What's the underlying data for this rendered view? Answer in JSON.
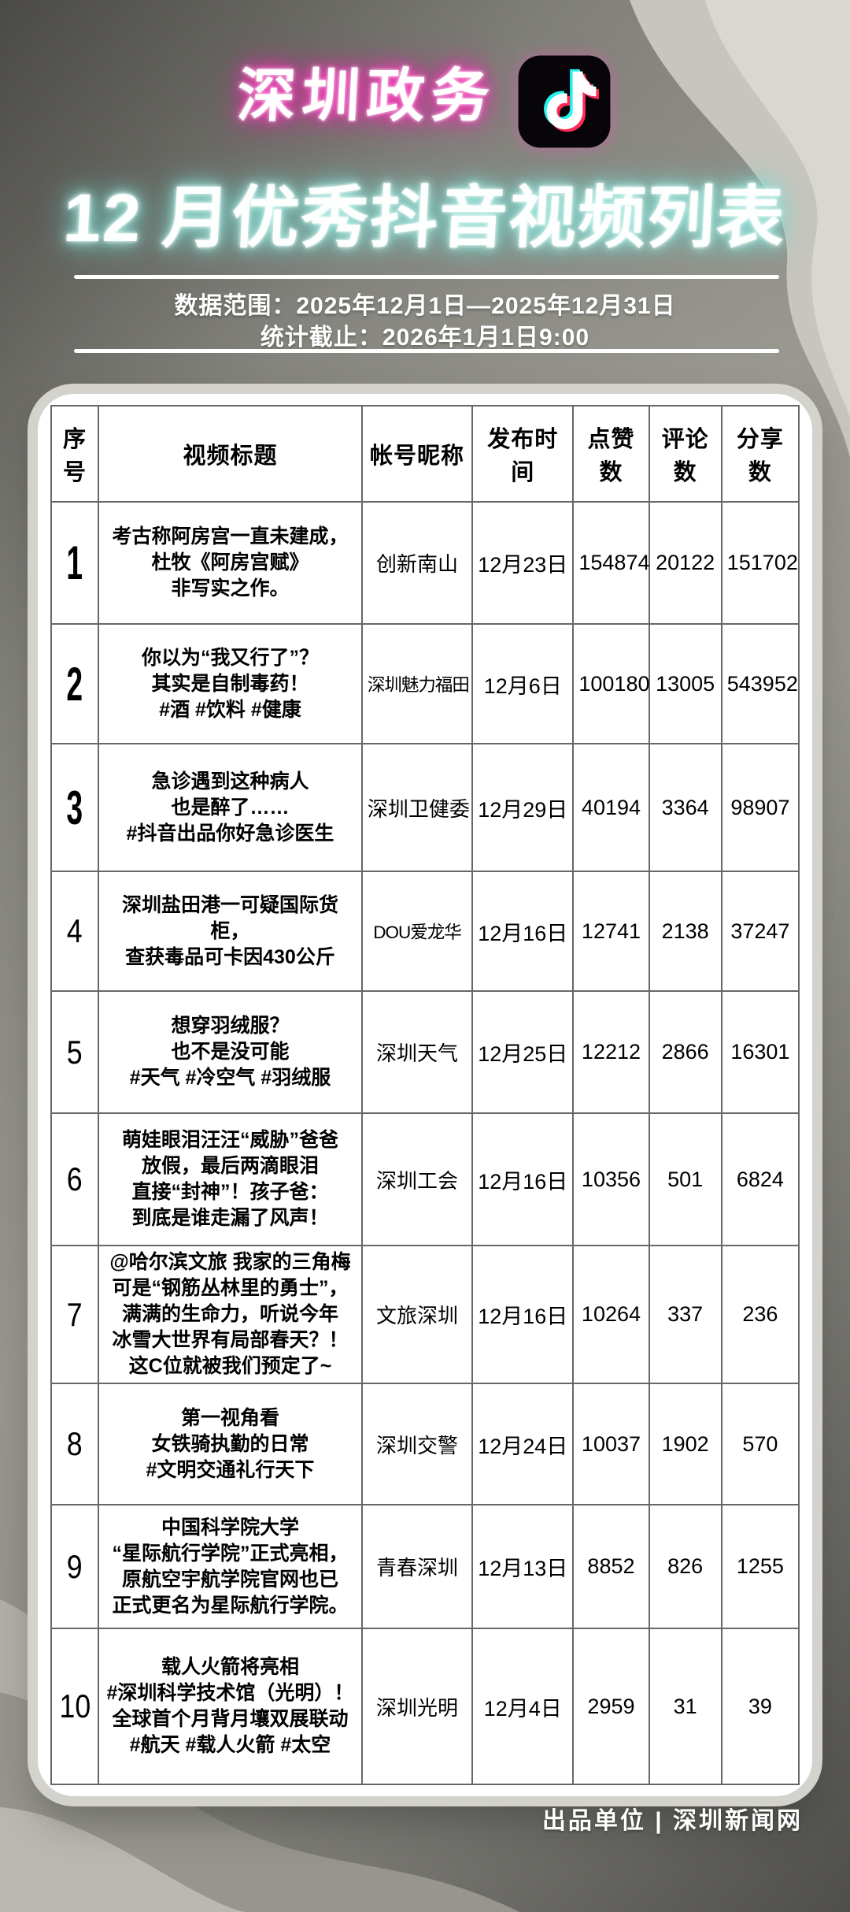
{
  "header": {
    "title_line1": "深圳政务",
    "title_line2": "12 月优秀抖音视频列表",
    "data_range": "数据范围：2025年12月1日—2025年12月31日",
    "stats_cutoff": "统计截止：2026年1月1日9:00"
  },
  "footer": {
    "credit": "出品单位 | 深圳新闻网"
  },
  "colors": {
    "accent_pink_glow": "#f32bb0",
    "accent_cyan_glow": "#86dfd5",
    "douyin_cyan": "#25f4ee",
    "douyin_red": "#fe2c55",
    "card_bg": "#ffffff",
    "bg_gray": "#93928b"
  },
  "icons": {
    "douyin_logo": "douyin-note-icon"
  },
  "chart_data": {
    "type": "table",
    "title": "深圳政务 12 月优秀抖音视频列表",
    "subtitle": "数据范围：2025年12月1日—2025年12月31日；统计截止：2026年1月1日9:00",
    "columns": [
      "序号",
      "视频标题",
      "帐号昵称",
      "发布时间",
      "点赞数",
      "评论数",
      "分享数"
    ],
    "rows": [
      {
        "rank": 1,
        "title": "考古称阿房宫一直未建成，\n杜牧《阿房宫赋》\n非写实之作。",
        "account": "创新南山",
        "date": "12月23日",
        "likes": 154874,
        "comments": 20122,
        "shares": 151702
      },
      {
        "rank": 2,
        "title": "你以为“我又行了”？\n其实是自制毒药！\n#酒 #饮料 #健康",
        "account": "深圳魅力福田",
        "date": "12月6日",
        "likes": 100180,
        "comments": 13005,
        "shares": 543952
      },
      {
        "rank": 3,
        "title": "急诊遇到这种病人\n也是醉了……\n#抖音出品你好急诊医生",
        "account": "深圳卫健委",
        "date": "12月29日",
        "likes": 40194,
        "comments": 3364,
        "shares": 98907
      },
      {
        "rank": 4,
        "title": "深圳盐田港一可疑国际货柜，\n查获毒品可卡因430公斤",
        "account": "DOU爱龙华",
        "date": "12月16日",
        "likes": 12741,
        "comments": 2138,
        "shares": 37247
      },
      {
        "rank": 5,
        "title": "想穿羽绒服？\n也不是没可能\n#天气 #冷空气 #羽绒服",
        "account": "深圳天气",
        "date": "12月25日",
        "likes": 12212,
        "comments": 2866,
        "shares": 16301
      },
      {
        "rank": 6,
        "title": "萌娃眼泪汪汪“威胁”爸爸\n放假，最后两滴眼泪\n直接“封神”！孩子爸：\n到底是谁走漏了风声！",
        "account": "深圳工会",
        "date": "12月16日",
        "likes": 10356,
        "comments": 501,
        "shares": 6824
      },
      {
        "rank": 7,
        "title": "@哈尔滨文旅 我家的三角梅\n可是“钢筋丛林里的勇士”，\n满满的生命力，听说今年\n冰雪大世界有局部春天？！\n这C位就被我们预定了~",
        "account": "文旅深圳",
        "date": "12月16日",
        "likes": 10264,
        "comments": 337,
        "shares": 236
      },
      {
        "rank": 8,
        "title": "第一视角看\n女铁骑执勤的日常\n#文明交通礼行天下",
        "account": "深圳交警",
        "date": "12月24日",
        "likes": 10037,
        "comments": 1902,
        "shares": 570
      },
      {
        "rank": 9,
        "title": "中国科学院大学\n“星际航行学院”正式亮相，\n原航空宇航学院官网也已\n正式更名为星际航行学院。",
        "account": "青春深圳",
        "date": "12月13日",
        "likes": 8852,
        "comments": 826,
        "shares": 1255
      },
      {
        "rank": 10,
        "title": "载人火箭将亮相\n#深圳科学技术馆（光明）！\n全球首个月背月壤双展联动\n#航天 #载人火箭 #太空",
        "account": "深圳光明",
        "date": "12月4日",
        "likes": 2959,
        "comments": 31,
        "shares": 39
      }
    ]
  }
}
